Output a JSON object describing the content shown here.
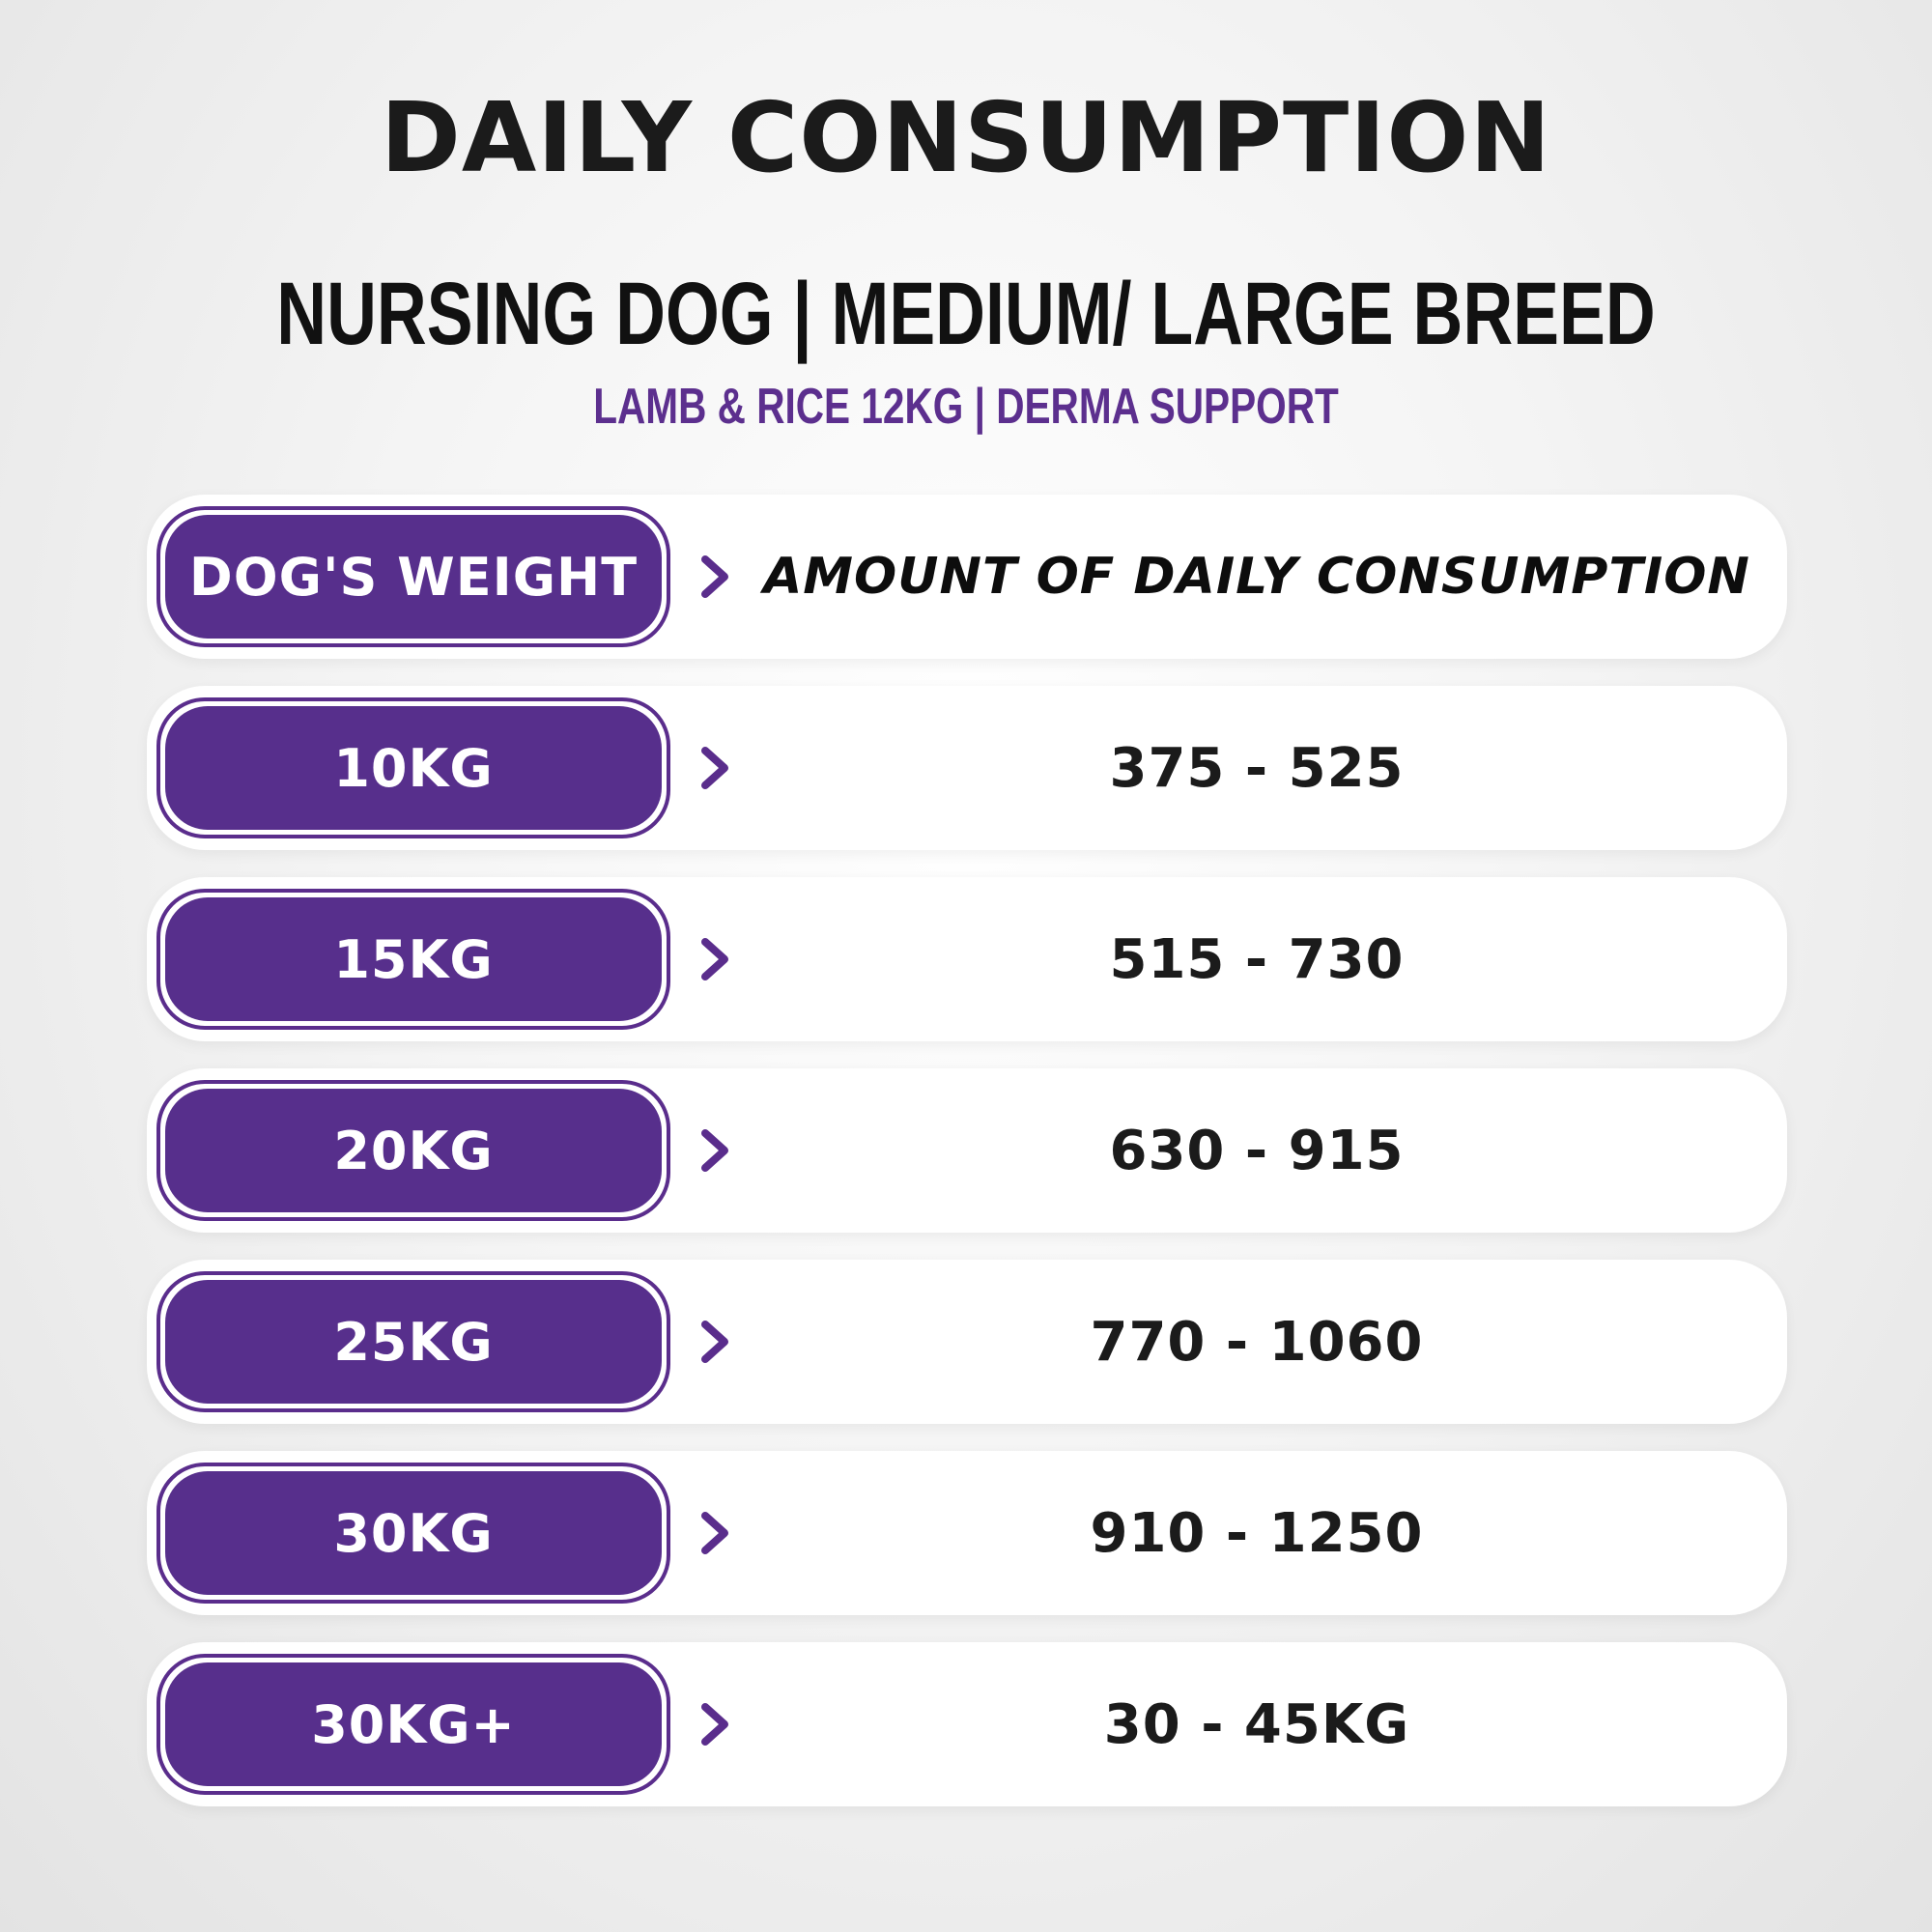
{
  "title": "DAILY CONSUMPTION",
  "subtitle": "NURSING DOG | MEDIUM/ LARGE BREED",
  "product": "LAMB & RICE 12KG | DERMA SUPPORT",
  "colors": {
    "accent": "#572f8c",
    "text": "#1b1b1b",
    "background": "#f4f4f4"
  },
  "table": {
    "header": {
      "weight": "DOG'S WEIGHT",
      "amount": "AMOUNT OF DAILY CONSUMPTION"
    },
    "rows": [
      {
        "weight": "10KG",
        "amount": "375 - 525"
      },
      {
        "weight": "15KG",
        "amount": "515 - 730"
      },
      {
        "weight": "20KG",
        "amount": "630 - 915"
      },
      {
        "weight": "25KG",
        "amount": "770 - 1060"
      },
      {
        "weight": "30KG",
        "amount": "910 - 1250"
      },
      {
        "weight": "30KG+",
        "amount": "30 - 45KG"
      }
    ]
  },
  "icons": {
    "row_marker": "chevron-right-icon"
  }
}
